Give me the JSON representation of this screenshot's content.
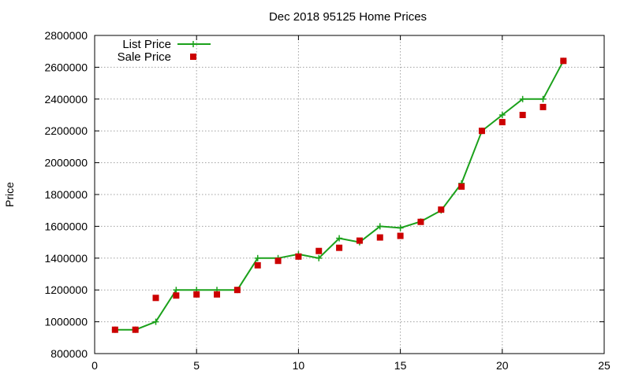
{
  "chart_data": {
    "type": "line",
    "title": "Dec 2018 95125 Home Prices",
    "xlabel": "",
    "ylabel": "Price",
    "xlim": [
      0,
      25
    ],
    "ylim": [
      800000,
      2800000
    ],
    "xticks": [
      0,
      5,
      10,
      15,
      20,
      25
    ],
    "yticks": [
      800000,
      1000000,
      1200000,
      1400000,
      1600000,
      1800000,
      2000000,
      2200000,
      2400000,
      2600000,
      2800000
    ],
    "grid": true,
    "legend_position": "top-left",
    "series": [
      {
        "name": "List Price",
        "kind": "line+cross",
        "color": "#1ba11b",
        "x": [
          1,
          2,
          3,
          4,
          5,
          6,
          7,
          8,
          9,
          10,
          11,
          12,
          13,
          14,
          15,
          16,
          17,
          18,
          19,
          20,
          21,
          22,
          23
        ],
        "y": [
          950000,
          950000,
          1000000,
          1200000,
          1200000,
          1200000,
          1200000,
          1400000,
          1400000,
          1425000,
          1400000,
          1525000,
          1500000,
          1600000,
          1590000,
          1630000,
          1700000,
          1870000,
          2200000,
          2300000,
          2400000,
          2400000,
          2640000
        ]
      },
      {
        "name": "Sale Price",
        "kind": "square-points",
        "color": "#cc0000",
        "x": [
          1,
          2,
          3,
          4,
          5,
          6,
          7,
          8,
          9,
          10,
          11,
          12,
          13,
          14,
          15,
          16,
          17,
          18,
          19,
          20,
          21,
          22,
          23
        ],
        "y": [
          950000,
          950000,
          1150000,
          1165000,
          1172000,
          1172000,
          1200000,
          1355000,
          1383000,
          1410000,
          1445000,
          1465000,
          1510000,
          1530000,
          1540000,
          1628000,
          1705000,
          1850000,
          2200000,
          2255000,
          2300000,
          2350000,
          2640000
        ]
      }
    ]
  }
}
